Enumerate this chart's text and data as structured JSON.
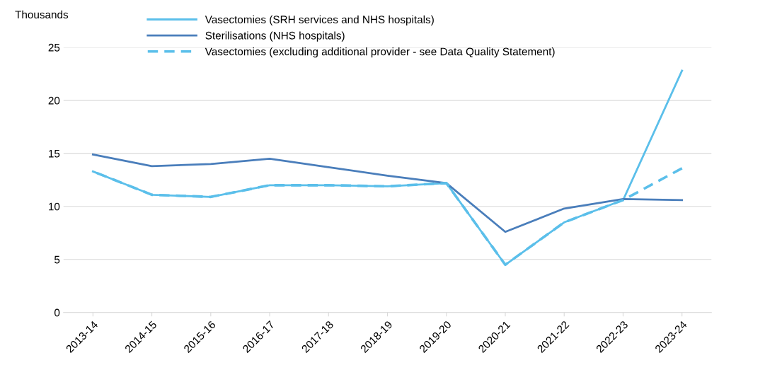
{
  "chart_data": {
    "type": "line",
    "ylabel": "Thousands",
    "categories": [
      "2013-14",
      "2014-15",
      "2015-16",
      "2016-17",
      "2017-18",
      "2018-19",
      "2019-20",
      "2020-21",
      "2021-22",
      "2022-23",
      "2023-24"
    ],
    "series": [
      {
        "name": "Vasectomies (SRH services and NHS hospitals)",
        "color": "#5bbfea",
        "line_style": "solid",
        "values": [
          13.3,
          11.1,
          10.9,
          12.0,
          12.0,
          11.9,
          12.2,
          4.5,
          8.5,
          10.6,
          22.8
        ]
      },
      {
        "name": "Sterilisations (NHS hospitals)",
        "color": "#4a7ebb",
        "line_style": "solid",
        "values": [
          14.9,
          13.8,
          14.0,
          14.5,
          13.7,
          12.9,
          12.2,
          7.6,
          9.8,
          10.7,
          10.6
        ]
      },
      {
        "name": "Vasectomies (excluding additional provider - see Data Quality Statement)",
        "color": "#5bbfea",
        "line_style": "dashed",
        "values": [
          13.3,
          11.1,
          10.9,
          12.0,
          12.0,
          11.9,
          12.2,
          4.5,
          8.5,
          10.6,
          13.6
        ]
      }
    ],
    "ylim": [
      0,
      25
    ],
    "yticks": [
      0,
      5,
      10,
      15,
      20,
      25
    ],
    "grid": "y",
    "legend": "top",
    "marker": "none"
  }
}
